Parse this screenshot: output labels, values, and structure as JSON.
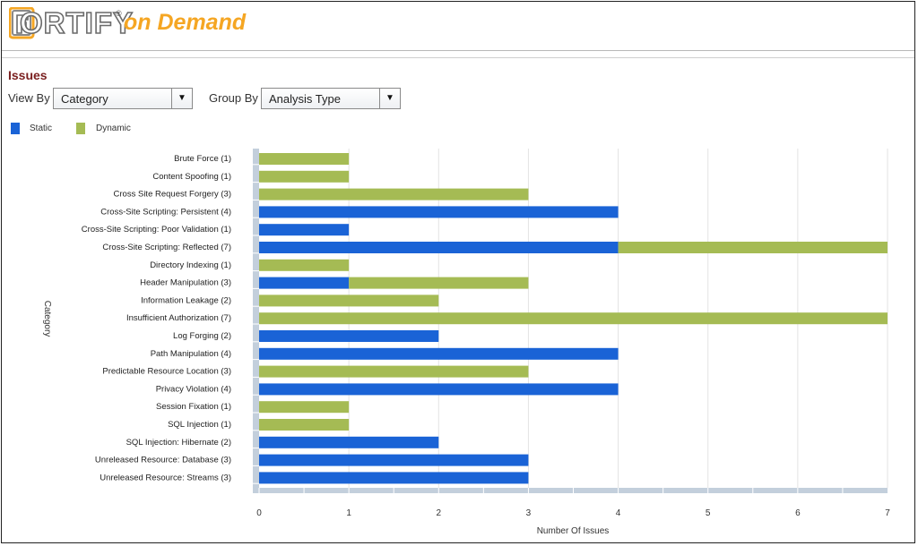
{
  "header": {
    "logo_letter": "F",
    "logo_word": "ORTIFY",
    "logo_tm": "®",
    "logo_suffix": "on Demand"
  },
  "page": {
    "title": "Issues",
    "view_by_label": "View By",
    "view_by_value": "Category",
    "group_by_label": "Group By",
    "group_by_value": "Analysis Type"
  },
  "colors": {
    "static": "#1a63d6",
    "dynamic": "#a5bb54",
    "axis_band": "#c3cfdc",
    "grid": "#e3e3e3"
  },
  "legend": {
    "static_label": "Static",
    "dynamic_label": "Dynamic"
  },
  "chart_data": {
    "type": "bar",
    "orientation": "horizontal",
    "stacked": true,
    "title": "",
    "xlabel": "Number Of Issues",
    "ylabel": "Category",
    "xlim": [
      0,
      7
    ],
    "xticks": [
      0,
      1,
      2,
      3,
      4,
      5,
      6,
      7
    ],
    "grid": true,
    "categories": [
      "Brute Force (1)",
      "Content Spoofing (1)",
      "Cross Site Request Forgery (3)",
      "Cross-Site Scripting: Persistent (4)",
      "Cross-Site Scripting: Poor Validation (1)",
      "Cross-Site Scripting: Reflected (7)",
      "Directory Indexing (1)",
      "Header Manipulation (3)",
      "Information Leakage (2)",
      "Insufficient Authorization (7)",
      "Log Forging (2)",
      "Path Manipulation (4)",
      "Predictable Resource Location (3)",
      "Privacy Violation (4)",
      "Session Fixation (1)",
      "SQL Injection (1)",
      "SQL Injection: Hibernate (2)",
      "Unreleased Resource: Database (3)",
      "Unreleased Resource: Streams (3)"
    ],
    "series": [
      {
        "name": "Static",
        "values": [
          0,
          0,
          0,
          4,
          1,
          4,
          0,
          1,
          0,
          0,
          2,
          4,
          0,
          4,
          0,
          0,
          2,
          3,
          3
        ]
      },
      {
        "name": "Dynamic",
        "values": [
          1,
          1,
          3,
          0,
          0,
          3,
          1,
          2,
          2,
          7,
          0,
          0,
          3,
          0,
          1,
          1,
          0,
          0,
          0
        ]
      }
    ]
  }
}
